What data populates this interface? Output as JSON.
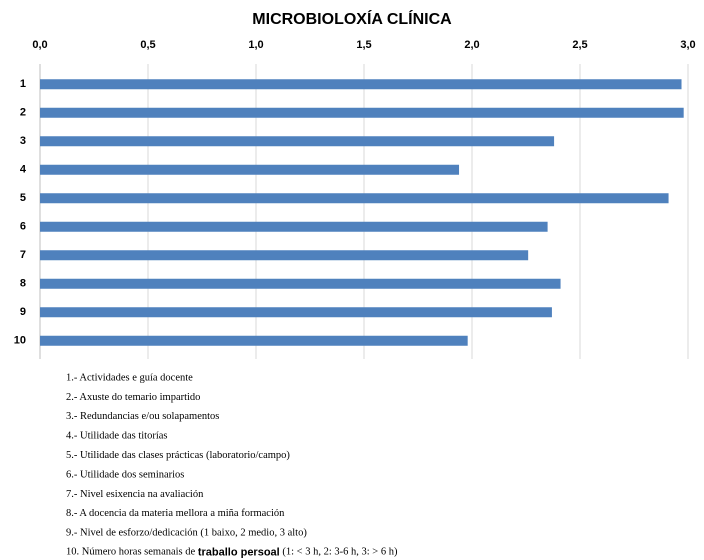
{
  "chart_data": {
    "type": "bar",
    "orientation": "horizontal",
    "title": "MICROBIOLOXÍA CLÍNICA",
    "categories": [
      "1",
      "2",
      "3",
      "4",
      "5",
      "6",
      "7",
      "8",
      "9",
      "10"
    ],
    "values": [
      2.97,
      2.98,
      2.38,
      1.94,
      2.91,
      2.35,
      2.26,
      2.41,
      2.37,
      1.98
    ],
    "color": "#4f81bd",
    "xlim": [
      0,
      3
    ],
    "xticks": [
      {
        "value": 0,
        "label": "0,0"
      },
      {
        "value": 0.5,
        "label": "0,5"
      },
      {
        "value": 1,
        "label": "1,0"
      },
      {
        "value": 1.5,
        "label": "1,5"
      },
      {
        "value": 2,
        "label": "2,0"
      },
      {
        "value": 2.5,
        "label": "2,5"
      },
      {
        "value": 3,
        "label": "3,0"
      }
    ],
    "grid": true
  },
  "notes": [
    "1.- Actividades e guía docente",
    "2.- Axuste do temario impartido",
    "3.- Redundancias e/ou solapamentos",
    "4.- Utilidade das titorías",
    "5.- Utilidade das clases prácticas (laboratorio/campo)",
    "6.- Utilidade dos seminarios",
    "7.- Nivel esixencia na avaliación",
    "8.- A docencia da materia mellora a miña formación",
    "9.- Nivel de esforzo/dedicación (1 baixo, 2 medio, 3 alto)",
    {
      "text": "10. Número horas semanais de ",
      "bold": "traballo persoal",
      "after": " (1: < 3 h, 2: 3-6 h, 3: > 6 h)"
    }
  ]
}
